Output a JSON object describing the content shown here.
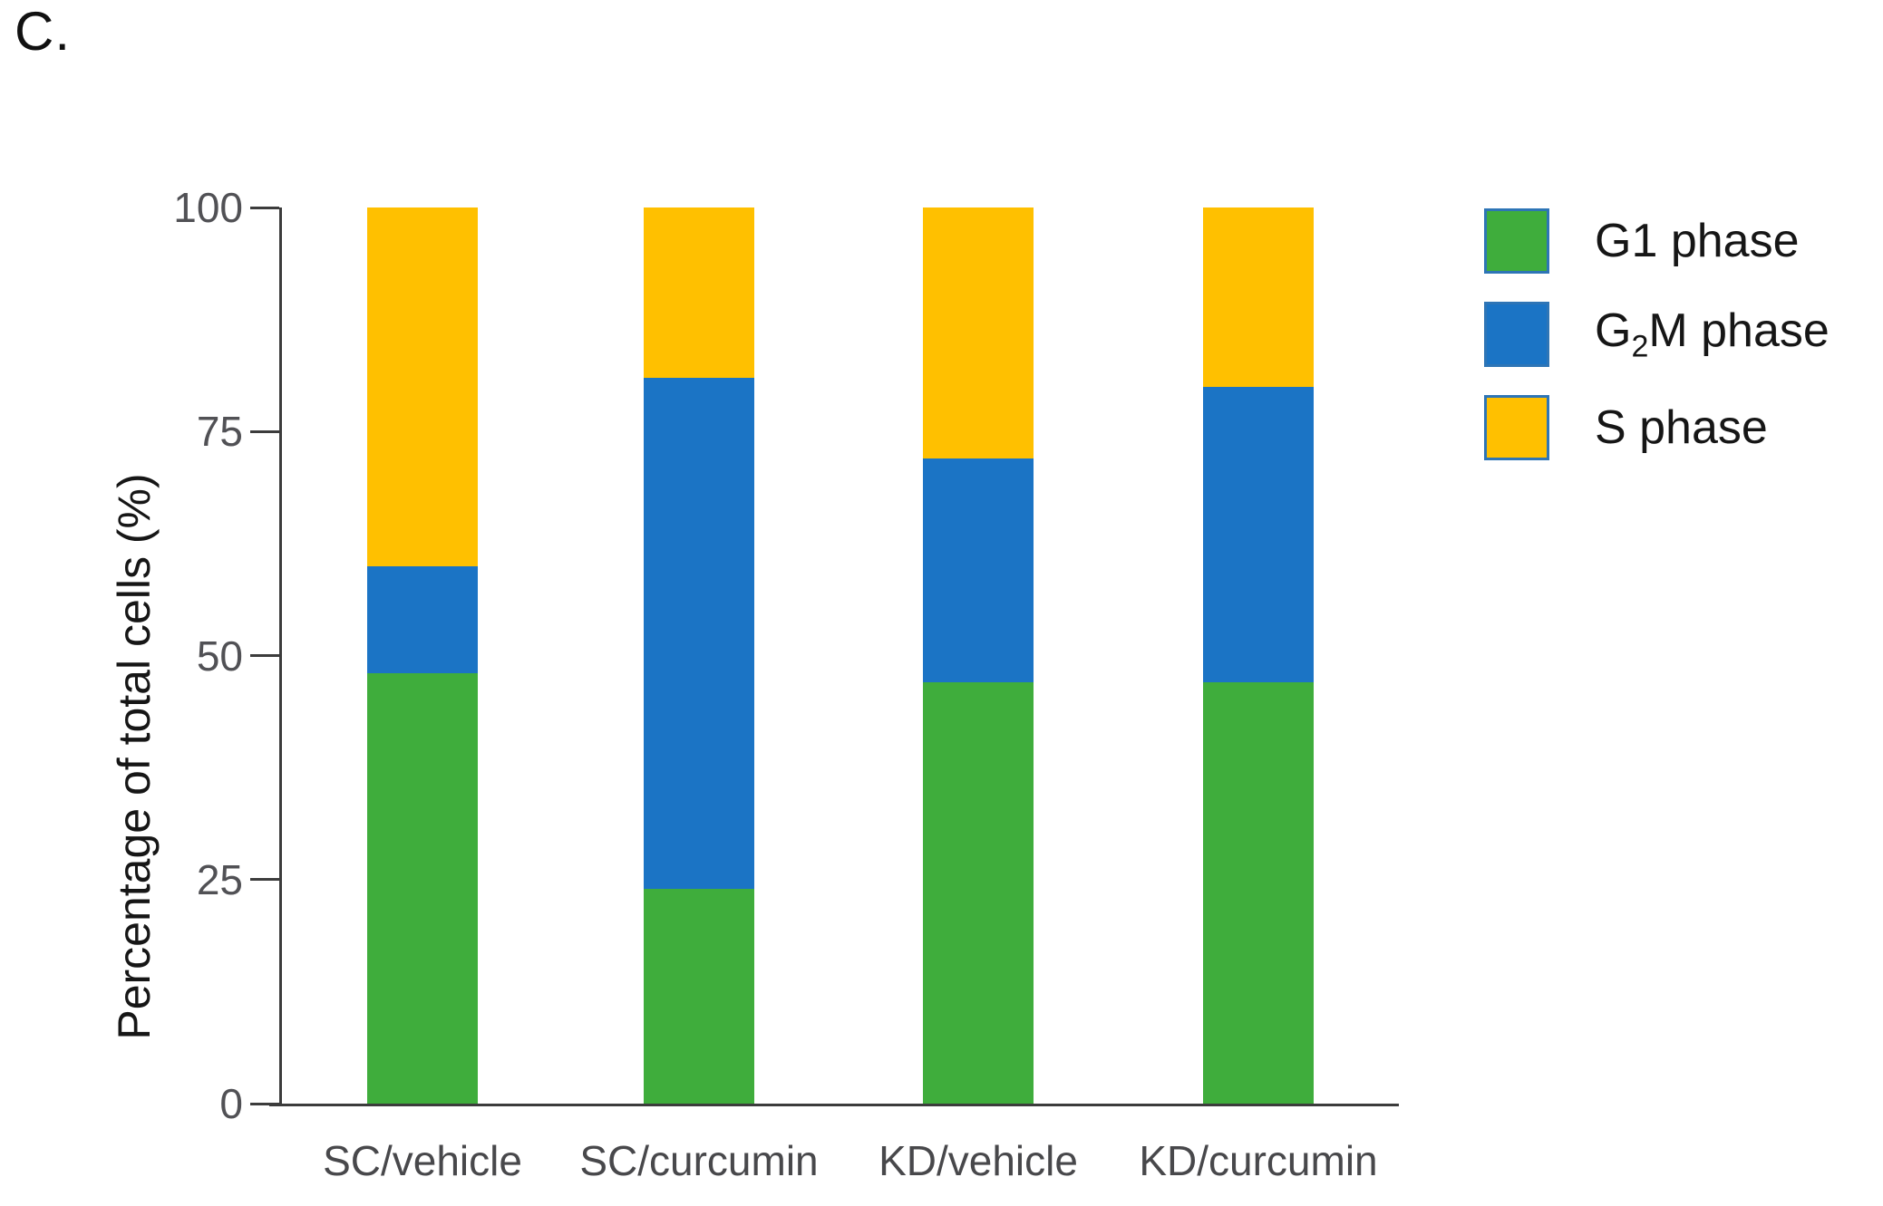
{
  "page": {
    "panel_label": "C."
  },
  "chart_data": {
    "type": "bar",
    "stacked": true,
    "title": "",
    "categories": [
      "SC/vehicle",
      "SC/curcumin",
      "KD/vehicle",
      "KD/curcumin"
    ],
    "series": [
      {
        "name": "G1 phase",
        "color": "#3FAD3C",
        "values": [
          48,
          24,
          47,
          47
        ]
      },
      {
        "name": "G₂M phase",
        "color": "#1B74C5",
        "values": [
          12,
          57,
          25,
          33
        ]
      },
      {
        "name": "S phase",
        "color": "#FFC000",
        "values": [
          40,
          19,
          28,
          20
        ]
      }
    ],
    "stack_order_bottom_to_top": [
      "G1 phase",
      "G₂M phase",
      "S phase"
    ],
    "ylabel": "Percentage of total cells (%)",
    "xlabel": "",
    "yticks": [
      0,
      25,
      50,
      75,
      100
    ],
    "ylim": [
      0,
      100
    ],
    "grid": false,
    "legend_position": "right",
    "legend_swatch_border": "#2E75B6",
    "cumulative_tops": {
      "SC/vehicle": {
        "G1": 48,
        "G2M": 60,
        "S": 100
      },
      "SC/curcumin": {
        "G1": 24,
        "G2M": 81,
        "S": 100
      },
      "KD/vehicle": {
        "G1": 47,
        "G2M": 72,
        "S": 100
      },
      "KD/curcumin": {
        "G1": 47,
        "G2M": 80,
        "S": 100
      }
    }
  }
}
